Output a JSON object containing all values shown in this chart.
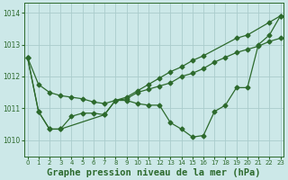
{
  "bg_color": "#cce8e8",
  "grid_color": "#aacccc",
  "line_color": "#2d6a2d",
  "marker": "D",
  "markersize": 2.5,
  "linewidth": 0.9,
  "title": "Graphe pression niveau de la mer (hPa)",
  "title_fontsize": 7.5,
  "ylim": [
    1009.5,
    1014.3
  ],
  "xlim": [
    -0.3,
    23.3
  ],
  "yticks": [
    1010,
    1011,
    1012,
    1013,
    1014
  ],
  "xticks": [
    0,
    1,
    2,
    3,
    4,
    5,
    6,
    7,
    8,
    9,
    10,
    11,
    12,
    13,
    14,
    15,
    16,
    17,
    18,
    19,
    20,
    21,
    22,
    23
  ],
  "series": {
    "s1_x": [
      0,
      1,
      2,
      3,
      4,
      5,
      6,
      7,
      8,
      9,
      10,
      11,
      12,
      13,
      14,
      15,
      16,
      17,
      18,
      19,
      20,
      21,
      22,
      23
    ],
    "s1_y": [
      1012.6,
      1011.75,
      1011.5,
      1011.4,
      1011.35,
      1011.3,
      1011.2,
      1011.15,
      1011.25,
      1011.3,
      1011.5,
      1011.6,
      1011.7,
      1011.8,
      1012.0,
      1012.1,
      1012.25,
      1012.45,
      1012.6,
      1012.75,
      1012.85,
      1012.95,
      1013.1,
      1013.2
    ],
    "s2_x": [
      0,
      1,
      2,
      3,
      7,
      8,
      9,
      10,
      11,
      12,
      13,
      14,
      15,
      16,
      17,
      18,
      19,
      20,
      21,
      22,
      23
    ],
    "s2_y": [
      1012.6,
      1010.9,
      1010.35,
      1010.35,
      1010.8,
      1011.25,
      1011.25,
      1011.15,
      1011.1,
      1011.1,
      1010.55,
      1010.35,
      1010.1,
      1010.15,
      1010.9,
      1011.1,
      1011.65,
      1011.65,
      1013.0,
      1013.3,
      1013.9
    ],
    "s3_x": [
      0,
      1,
      2,
      3,
      4,
      5,
      6,
      7,
      8,
      9,
      10,
      11,
      12,
      13,
      14,
      15,
      16,
      19,
      20,
      22,
      23
    ],
    "s3_y": [
      1012.6,
      1010.9,
      1010.35,
      1010.35,
      1010.75,
      1010.85,
      1010.85,
      1010.8,
      1011.25,
      1011.35,
      1011.55,
      1011.75,
      1011.95,
      1012.15,
      1012.3,
      1012.5,
      1012.65,
      1013.2,
      1013.3,
      1013.7,
      1013.9
    ]
  }
}
